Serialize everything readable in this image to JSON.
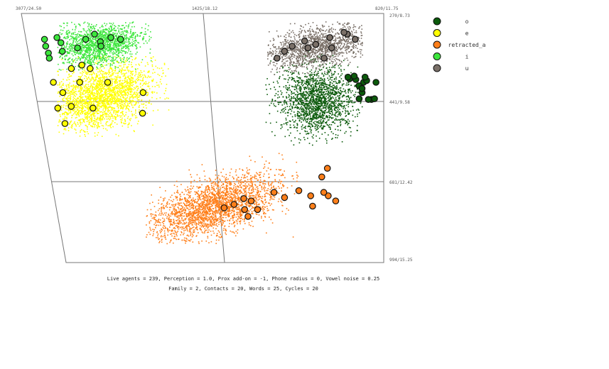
{
  "chart_data": {
    "type": "scatter",
    "title": "",
    "x_ticks": [
      "3077/24.50",
      "1425/18.12",
      "820/11.75"
    ],
    "y_ticks": [
      "270/8.73",
      "441/9.58",
      "681/12.42",
      "994/15.25"
    ],
    "legend_placement": "top-right",
    "series": [
      {
        "name": "o",
        "color": "#0b5a0b",
        "prototypes": [
          [
            1012,
            455
          ],
          [
            1000,
            462
          ],
          [
            950,
            470
          ],
          [
            930,
            465
          ],
          [
            870,
            470
          ],
          [
            1040,
            460
          ],
          [
            980,
            480
          ],
          [
            1010,
            452
          ],
          [
            940,
            455
          ],
          [
            960,
            500
          ],
          [
            900,
            520
          ],
          [
            880,
            518
          ],
          [
            920,
            520
          ],
          [
            980,
            518
          ],
          [
            1050,
            455
          ],
          [
            960,
            488
          ]
        ]
      },
      {
        "name": "e",
        "color": "#ffff00",
        "prototypes": [
          [
            2750,
            420
          ],
          [
            2700,
            430
          ],
          [
            2820,
            430
          ],
          [
            2780,
            470
          ],
          [
            2600,
            470
          ],
          [
            2380,
            500
          ],
          [
            2950,
            470
          ],
          [
            2900,
            500
          ],
          [
            2720,
            545
          ],
          [
            2860,
            540
          ],
          [
            2950,
            545
          ],
          [
            2400,
            560
          ],
          [
            2920,
            590
          ]
        ]
      },
      {
        "name": "retracted_a",
        "color": "#ff7f1a",
        "prototypes": [
          [
            1200,
            720
          ],
          [
            1240,
            745
          ],
          [
            1200,
            800
          ],
          [
            1150,
            815
          ],
          [
            1230,
            790
          ],
          [
            1400,
            785
          ],
          [
            1500,
            805
          ],
          [
            1570,
            790
          ],
          [
            1730,
            815
          ],
          [
            1780,
            808
          ],
          [
            1850,
            825
          ],
          [
            1780,
            840
          ],
          [
            1760,
            860
          ],
          [
            1920,
            835
          ],
          [
            1690,
            840
          ],
          [
            1310,
            830
          ],
          [
            1320,
            800
          ]
        ]
      },
      {
        "name": "i",
        "color": "#3ce63c",
        "prototypes": [
          [
            2640,
            330
          ],
          [
            2540,
            340
          ],
          [
            2610,
            352
          ],
          [
            2700,
            345
          ],
          [
            2880,
            340
          ],
          [
            2860,
            355
          ],
          [
            2960,
            345
          ],
          [
            2960,
            365
          ],
          [
            2950,
            385
          ],
          [
            2860,
            380
          ],
          [
            2760,
            370
          ],
          [
            2610,
            365
          ],
          [
            2480,
            345
          ],
          [
            2950,
            400
          ]
        ]
      },
      {
        "name": "u",
        "color": "#7a7068",
        "prototypes": [
          [
            1050,
            330
          ],
          [
            1070,
            325
          ],
          [
            1160,
            340
          ],
          [
            1320,
            350
          ],
          [
            1400,
            365
          ],
          [
            1250,
            360
          ],
          [
            1000,
            345
          ],
          [
            1300,
            370
          ],
          [
            1450,
            380
          ],
          [
            1200,
            400
          ],
          [
            1500,
            400
          ],
          [
            1150,
            370
          ]
        ]
      }
    ]
  },
  "caption": {
    "line1": "Live agents = 239, Perception = 1.0, Prox add-on = -1, Phone radius = 0, Vowel noise = 0.25",
    "line2": "Family = 2, Contacts = 20, Words = 25, Cycles = 20"
  }
}
